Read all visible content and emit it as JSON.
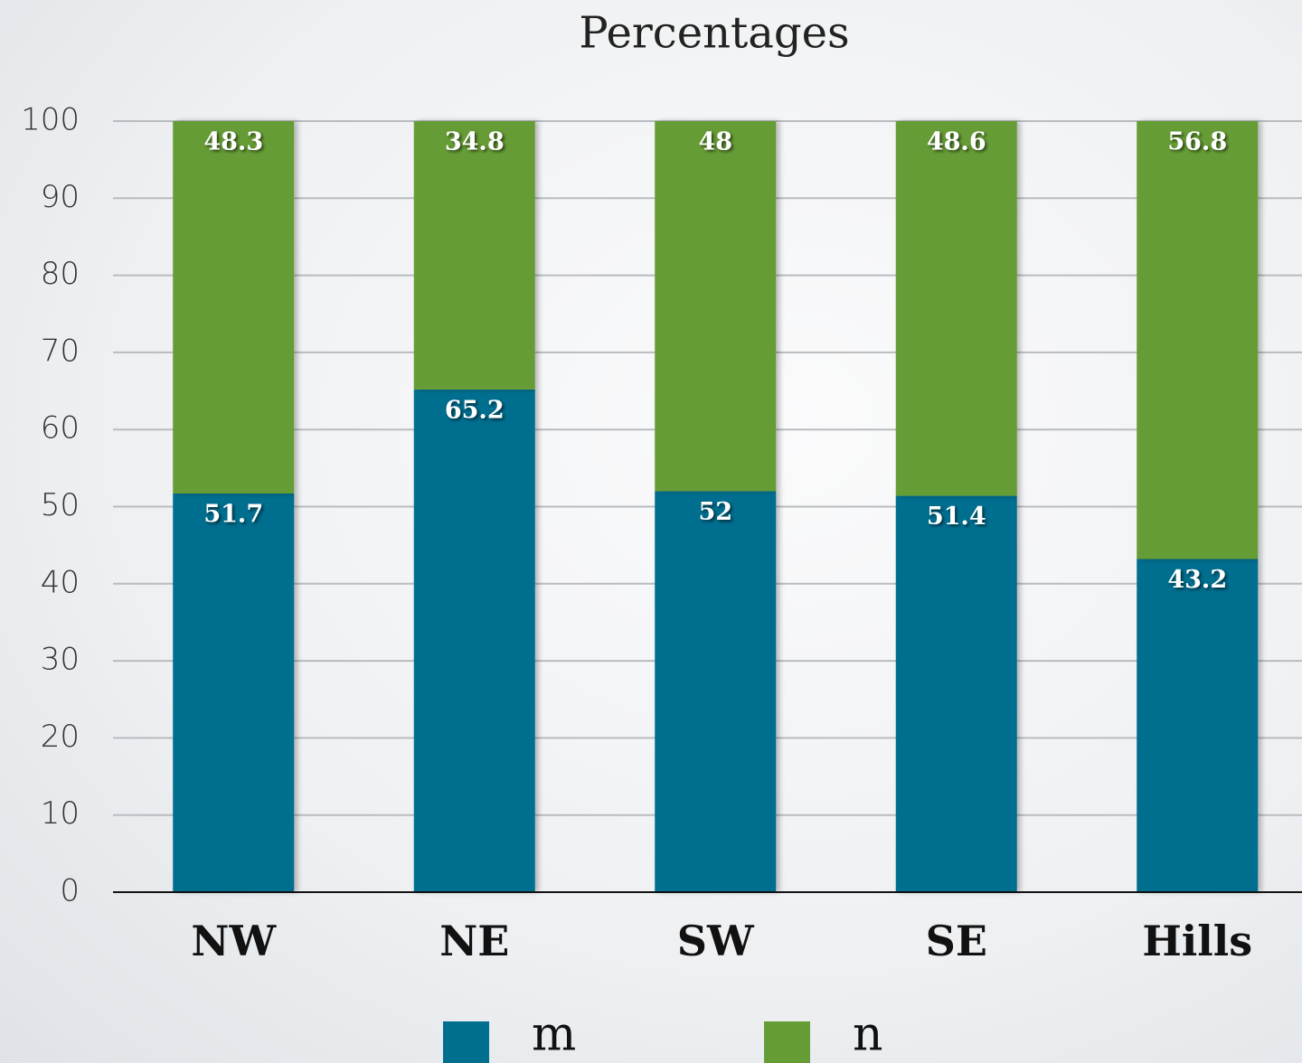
{
  "chart_data": {
    "type": "stacked_bar",
    "title": "Percentages",
    "categories": [
      "NW",
      "NE",
      "SW",
      "SE",
      "Hills"
    ],
    "series": [
      {
        "name": "m",
        "color": "#006e8f",
        "values": [
          51.7,
          65.2,
          52,
          51.4,
          43.2
        ]
      },
      {
        "name": "n",
        "color": "#669c35",
        "values": [
          48.3,
          34.8,
          48,
          48.6,
          56.8
        ]
      }
    ],
    "ylim": [
      0,
      100
    ],
    "yticks": [
      0,
      10,
      20,
      30,
      40,
      50,
      60,
      70,
      80,
      90,
      100
    ],
    "grid": true,
    "legend": "bottom"
  }
}
